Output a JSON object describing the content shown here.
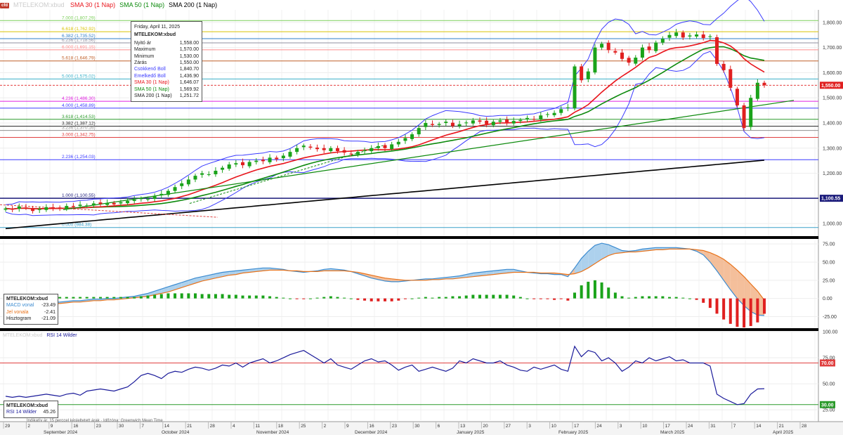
{
  "header": {
    "logo_label": "cfd",
    "symbol_ghost": "MTELEKOM:xbud",
    "ma_labels": [
      {
        "label": "SMA 30 (1 Nap)",
        "color": "#e8141b"
      },
      {
        "label": "SMA 50 (1 Nap)",
        "color": "#0d8a0d"
      },
      {
        "label": "SMA 200 (1 Nap)",
        "color": "#000000"
      }
    ]
  },
  "ohlc_box": {
    "date": "Friday, April 11, 2025",
    "symbol": "MTELEKOM:xbud",
    "rows": [
      {
        "label": "Nyitó ár",
        "value": "1,558.00",
        "color": "#222222"
      },
      {
        "label": "Maximum",
        "value": "1,570.00",
        "color": "#222222"
      },
      {
        "label": "Minimum",
        "value": "1,530.00",
        "color": "#222222"
      },
      {
        "label": "Zárás",
        "value": "1,550.00",
        "color": "#222222"
      },
      {
        "label": "Csökkenő Boll",
        "value": "1,840.70",
        "color": "#3a3aff"
      },
      {
        "label": "Emelkedő Boll",
        "value": "1,436.90",
        "color": "#3a3aff"
      },
      {
        "label": "SMA 30 (1 Nap)",
        "value": "1,646.07",
        "color": "#e8141b"
      },
      {
        "label": "SMA 50 (1 Nap)",
        "value": "1,569.92",
        "color": "#0d8a0d"
      },
      {
        "label": "SMA 200 (1 Nap)",
        "value": "1,251.72",
        "color": "#222222"
      }
    ]
  },
  "macd_box": {
    "symbol": "MTELEKOM:xbud",
    "rows": [
      {
        "label": "MACD vonal",
        "value": "-23.49",
        "color": "#3b8bd0"
      },
      {
        "label": "Jel vonala",
        "value": "-2.41",
        "color": "#e8731b"
      },
      {
        "label": "Hisztogram",
        "value": "-21.09",
        "color": "#222222"
      }
    ]
  },
  "rsi_box": {
    "symbol": "MTELEKOM:xbud",
    "row": {
      "label": "RSI 14 Wilder",
      "value": "45.26",
      "color": "#1a1a9a"
    }
  },
  "rsi_header": {
    "ghost": "MTELEKOM:xbud",
    "label": "RSI 14 Wilder"
  },
  "footnote": "Indikatív ár. 15 perccel késleltetett árak · Időzóna: Greenwich Mean Time",
  "chart_data": [
    {
      "type": "candlestick",
      "name": "price",
      "ylim": [
        950,
        1850
      ],
      "y_ticks": [
        "1,000.00",
        "1,100.00",
        "1,200.00",
        "1,300.00",
        "1,400.00",
        "1,500.00",
        "1,600.00",
        "1,700.00",
        "1,800.00"
      ],
      "last_price_label": "1,550.00",
      "level_badge": "1,100.55",
      "fib_levels": [
        {
          "label": "7.000 (1,807.29)",
          "value": 1807.29,
          "color": "#7ccf5a"
        },
        {
          "label": "6.618 (1,762.92)",
          "value": 1762.92,
          "color": "#d9c200"
        },
        {
          "label": "6.382 (1,735.52)",
          "value": 1735.52,
          "color": "#2f7fc8"
        },
        {
          "label": "6.236 (1,718.56)",
          "value": 1718.56,
          "color": "#9090a0"
        },
        {
          "label": "6.000 (1,691.15)",
          "value": 1691.15,
          "color": "#ff8c8c"
        },
        {
          "label": "5.618 (1,646.79)",
          "value": 1646.79,
          "color": "#c0602a"
        },
        {
          "label": "5.000 (1,575.02)",
          "value": 1575.02,
          "color": "#3ab0c8"
        },
        {
          "label": "4.236 (1,486.30)",
          "value": 1486.3,
          "color": "#e020e0"
        },
        {
          "label": "4.000 (1,458.89)",
          "value": 1458.89,
          "color": "#3a3aff"
        },
        {
          "label": "3.618 (1,414.53)",
          "value": 1414.53,
          "color": "#2a9a2a"
        },
        {
          "label": "3.382 (1,387.12)",
          "value": 1387.12,
          "color": "#222222"
        },
        {
          "label": "3.236 (1,370.16)",
          "value": 1370.16,
          "color": "#909090"
        },
        {
          "label": "3.000 (1,342.75)",
          "value": 1342.75,
          "color": "#e04040"
        },
        {
          "label": "2.236 (1,254.03)",
          "value": 1254.03,
          "color": "#3a3aff"
        },
        {
          "label": "1.000 (1,100.55)",
          "value": 1100.55,
          "color": "#1a1a7a"
        },
        {
          "label": "0.000 (984.38)",
          "value": 984.38,
          "color": "#3aa0c8"
        }
      ],
      "closes": [
        1060,
        1055,
        1068,
        1062,
        1050,
        1058,
        1065,
        1060,
        1062,
        1070,
        1066,
        1075,
        1072,
        1080,
        1078,
        1082,
        1076,
        1085,
        1090,
        1095,
        1100,
        1098,
        1108,
        1118,
        1130,
        1145,
        1160,
        1175,
        1190,
        1200,
        1196,
        1210,
        1222,
        1235,
        1240,
        1232,
        1245,
        1250,
        1248,
        1262,
        1256,
        1270,
        1285,
        1300,
        1310,
        1302,
        1296,
        1292,
        1300,
        1288,
        1282,
        1275,
        1285,
        1292,
        1300,
        1308,
        1300,
        1315,
        1325,
        1340,
        1355,
        1380,
        1400,
        1392,
        1396,
        1405,
        1388,
        1395,
        1402,
        1410,
        1405,
        1395,
        1405,
        1410,
        1402,
        1408,
        1412,
        1420,
        1415,
        1430,
        1435,
        1440,
        1455,
        1462,
        1625,
        1570,
        1605,
        1700,
        1715,
        1690,
        1680,
        1655,
        1640,
        1660,
        1700,
        1690,
        1720,
        1735,
        1750,
        1760,
        1740,
        1748,
        1752,
        1738,
        1745,
        1635,
        1610,
        1540,
        1470,
        1380,
        1500,
        1560,
        1550
      ]
    },
    {
      "type": "bar",
      "name": "MACD",
      "ylim": [
        -40,
        80
      ],
      "y_ticks": [
        "75.00",
        "50.00",
        "25.00",
        "0.00",
        "-25.00"
      ],
      "series": [
        {
          "name": "MACD vonal",
          "values": [
            -10,
            -9,
            -9,
            -8,
            -8,
            -7,
            -6,
            -5,
            -5,
            -4,
            -3,
            -3,
            -2,
            -1,
            -1,
            0,
            0,
            1,
            2,
            3,
            5,
            7,
            10,
            13,
            16,
            19,
            22,
            25,
            28,
            30,
            32,
            34,
            36,
            37,
            38,
            39,
            40,
            41,
            42,
            42,
            41,
            40,
            38,
            37,
            36,
            37,
            38,
            40,
            41,
            40,
            39,
            37,
            34,
            31,
            28,
            26,
            24,
            23,
            23,
            24,
            25,
            26,
            27,
            27,
            28,
            29,
            30,
            31,
            33,
            35,
            36,
            37,
            38,
            39,
            40,
            40,
            38,
            36,
            35,
            34,
            34,
            33,
            33,
            30,
            42,
            55,
            65,
            73,
            76,
            74,
            70,
            66,
            65,
            66,
            68,
            69,
            70,
            70,
            70,
            70,
            69,
            68,
            65,
            60,
            50,
            38,
            25,
            12,
            0,
            -10,
            -18,
            -23,
            -23.5
          ]
        },
        {
          "name": "Jel vonala",
          "values": [
            -12,
            -11,
            -11,
            -10,
            -10,
            -9,
            -8,
            -7,
            -7,
            -6,
            -5,
            -5,
            -4,
            -3,
            -3,
            -2,
            -2,
            -1,
            0,
            1,
            2,
            3,
            5,
            7,
            9,
            12,
            15,
            18,
            21,
            24,
            26,
            28,
            30,
            32,
            33,
            35,
            36,
            37,
            38,
            39,
            39,
            39,
            38,
            38,
            37,
            37,
            37,
            38,
            38,
            38,
            38,
            37,
            36,
            34,
            32,
            30,
            28,
            27,
            26,
            25,
            25,
            25,
            25,
            26,
            26,
            27,
            27,
            28,
            29,
            30,
            31,
            32,
            33,
            34,
            35,
            36,
            36,
            36,
            36,
            35,
            35,
            35,
            34,
            33,
            34,
            37,
            42,
            48,
            54,
            59,
            62,
            63,
            64,
            64,
            65,
            66,
            67,
            67,
            68,
            68,
            68,
            68,
            67,
            66,
            63,
            59,
            54,
            47,
            39,
            30,
            20,
            10,
            -2.4
          ]
        }
      ]
    },
    {
      "type": "line",
      "name": "RSI 14 Wilder",
      "ylim": [
        15,
        100
      ],
      "y_ticks": [
        "100.00",
        "75.00",
        "50.00",
        "25.00"
      ],
      "levels": [
        {
          "label": "70.00",
          "value": 70,
          "color": "#e04040"
        },
        {
          "label": "30.00",
          "value": 30,
          "color": "#2a9a2a"
        }
      ],
      "values": [
        38,
        37,
        38,
        37,
        38,
        39,
        40,
        39,
        38,
        40,
        41,
        39,
        43,
        44,
        45,
        44,
        43,
        45,
        47,
        52,
        58,
        60,
        58,
        55,
        60,
        62,
        61,
        64,
        66,
        65,
        63,
        65,
        68,
        67,
        70,
        66,
        70,
        72,
        74,
        70,
        72,
        75,
        78,
        80,
        82,
        78,
        74,
        70,
        74,
        68,
        66,
        64,
        68,
        72,
        74,
        71,
        72,
        68,
        63,
        66,
        68,
        62,
        64,
        66,
        64,
        62,
        65,
        72,
        70,
        74,
        72,
        70,
        70,
        72,
        68,
        66,
        63,
        62,
        66,
        64,
        66,
        68,
        64,
        62,
        86,
        76,
        82,
        80,
        72,
        75,
        70,
        62,
        66,
        72,
        70,
        75,
        72,
        74,
        76,
        72,
        73,
        70,
        70,
        70,
        67,
        40,
        36,
        33,
        30,
        31,
        40,
        45,
        45.3
      ]
    }
  ],
  "x_axis": {
    "days": [
      "29",
      "2",
      "9",
      "16",
      "23",
      "30",
      "7",
      "14",
      "21",
      "28",
      "4",
      "11",
      "18",
      "25",
      "2",
      "9",
      "16",
      "23",
      "30",
      "6",
      "13",
      "20",
      "27",
      "3",
      "10",
      "17",
      "24",
      "3",
      "10",
      "17",
      "24",
      "31",
      "7",
      "14",
      "21",
      "28"
    ],
    "months": [
      "September 2024",
      "October 2024",
      "November 2024",
      "December 2024",
      "January 2025",
      "February 2025",
      "March 2025",
      "April 2025"
    ]
  }
}
